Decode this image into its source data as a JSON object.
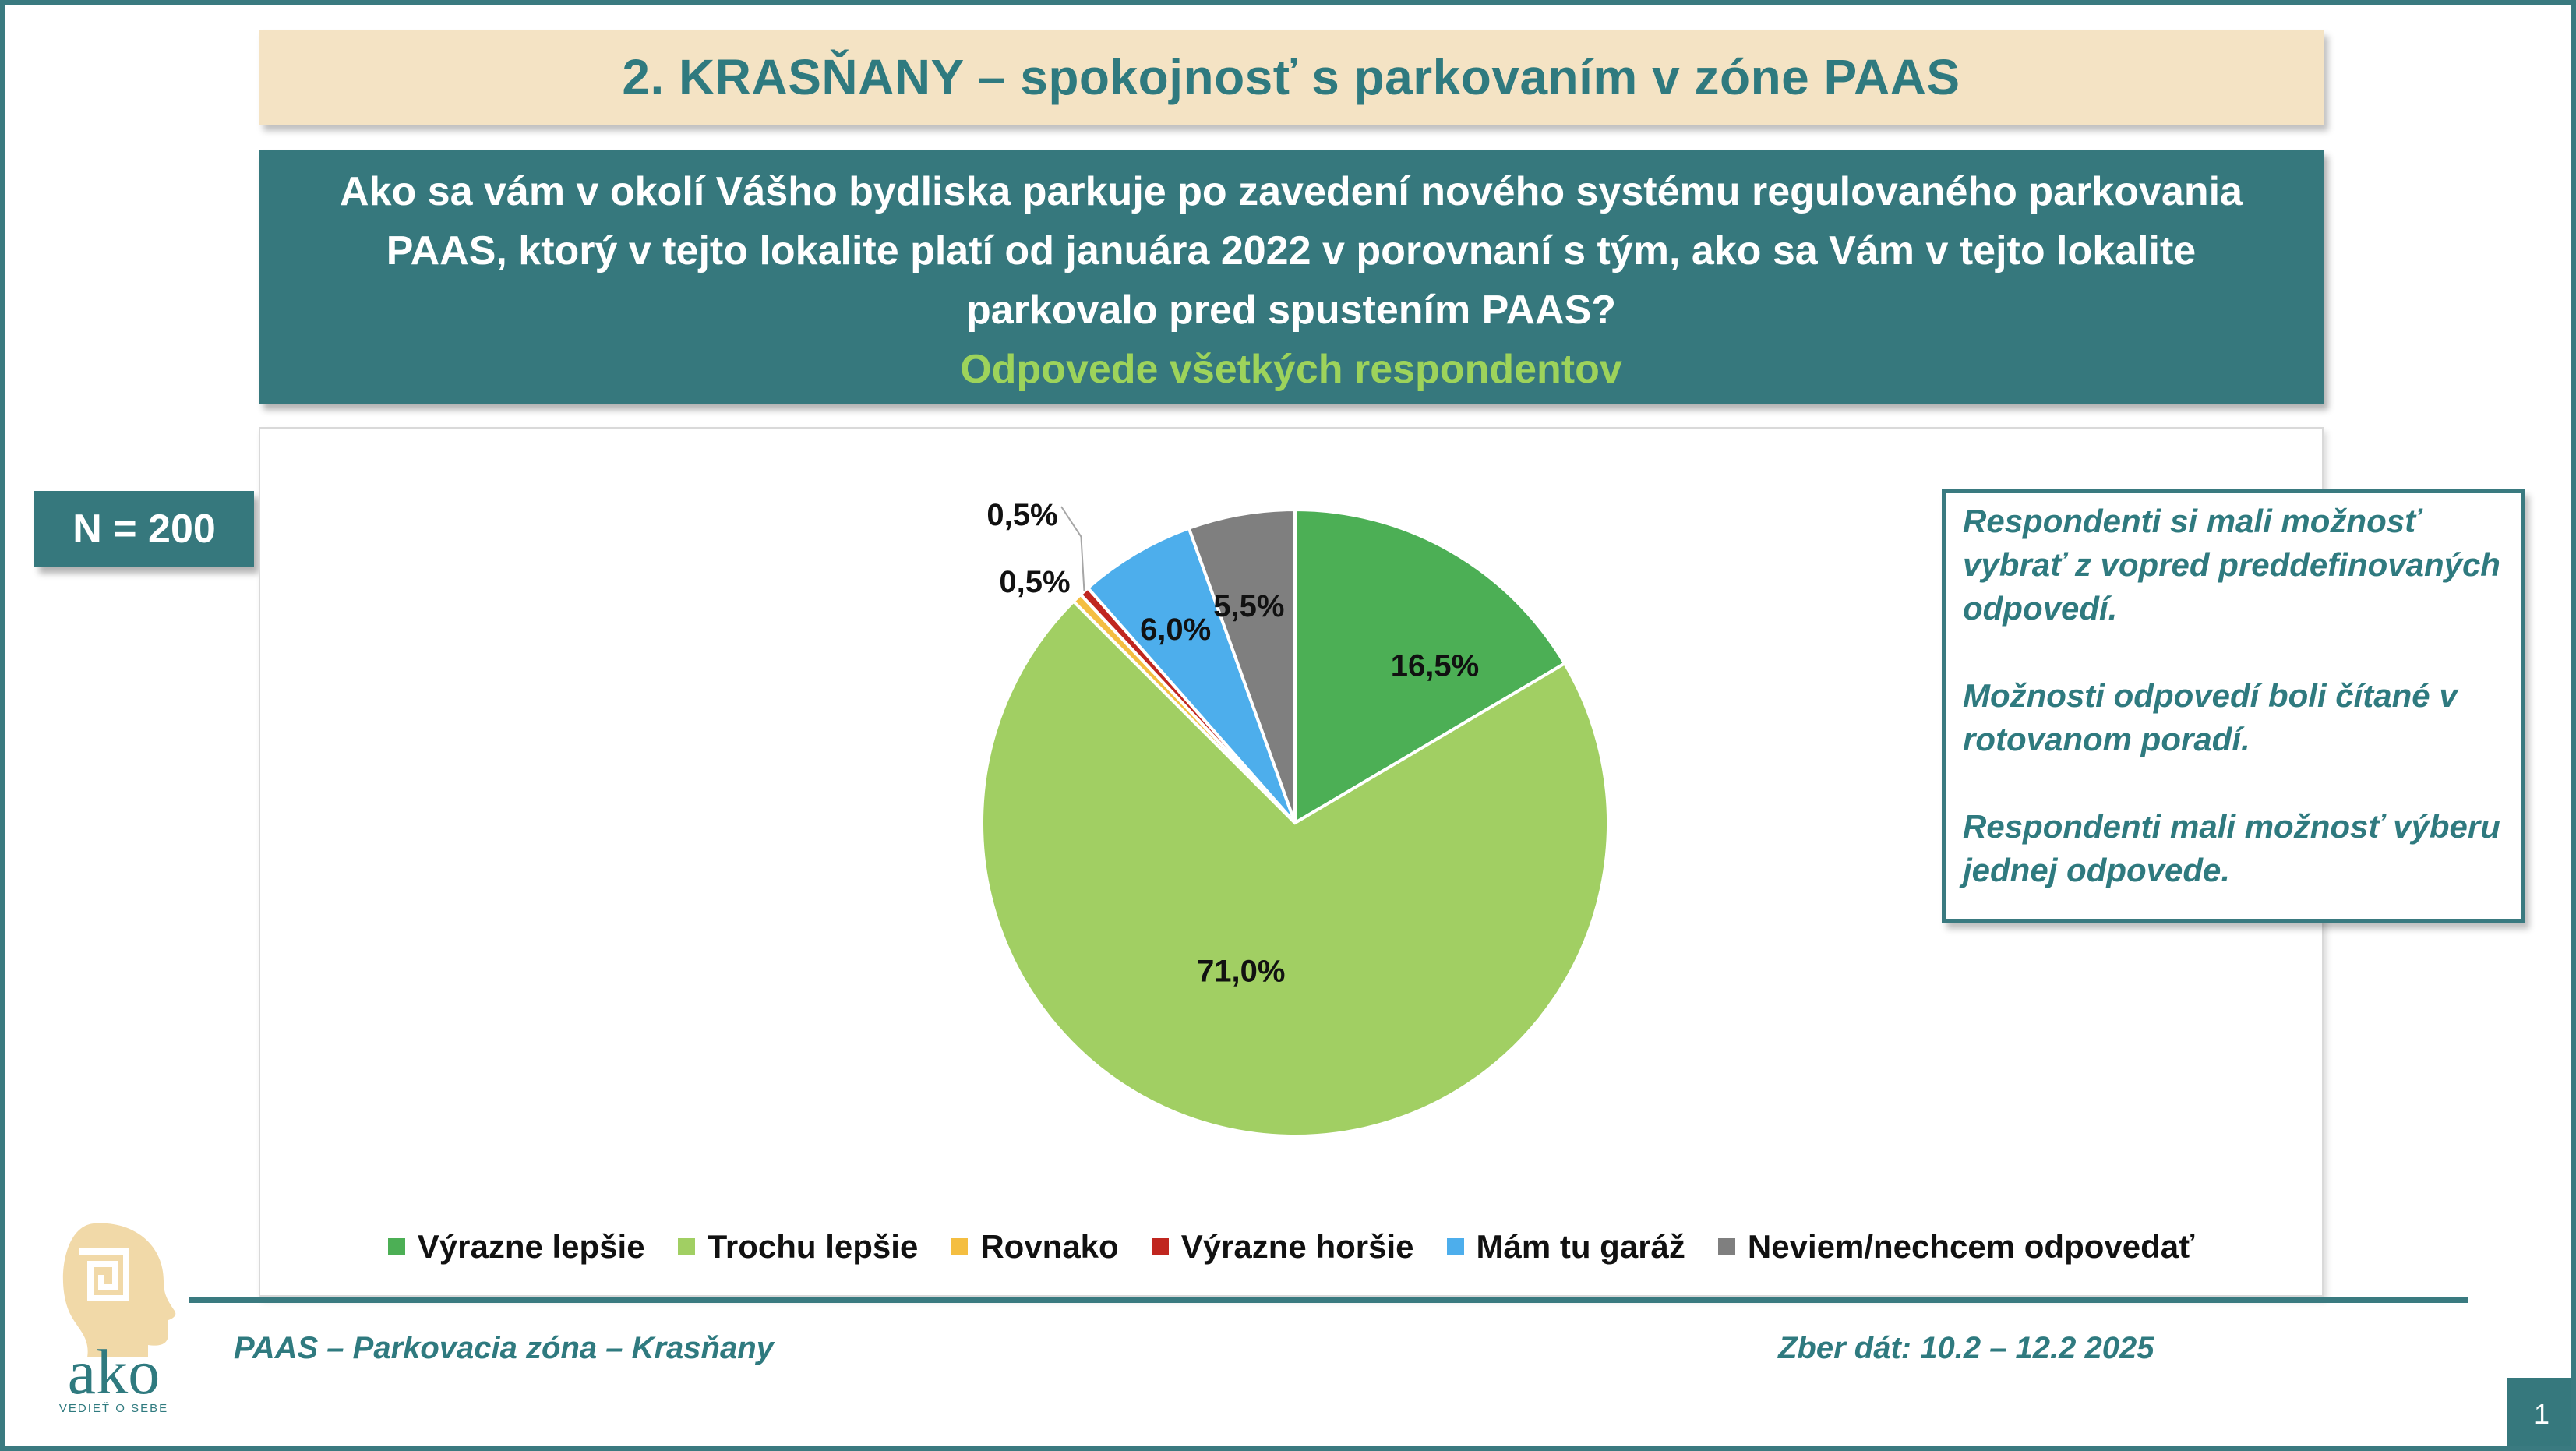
{
  "title": "2. KRASŇANY – spokojnosť s parkovaním v zóne PAAS",
  "question": {
    "lines": [
      "Ako sa vám v okolí Vášho bydliska parkuje po zavedení nového systému regulovaného parkovania",
      "PAAS, ktorý v tejto lokalite platí od januára 2022 v porovnaní s tým, ako sa Vám v tejto lokalite",
      "parkovalo pred spustením PAAS?"
    ],
    "subtitle": "Odpovede všetkých respondentov"
  },
  "sample": "N = 200",
  "note": {
    "paragraphs": [
      "Respondenti si mali možnosť vybrať z vopred preddefinovaných odpovedí.",
      "Možnosti odpovedí boli čítané v rotovanom poradí.",
      "Respondenti mali možnosť výberu jednej odpovede."
    ]
  },
  "chart_data": {
    "type": "pie",
    "title": "",
    "start_angle_deg": 0,
    "direction": "clockwise",
    "legend_position": "bottom",
    "slices": [
      {
        "label": "Výrazne lepšie",
        "value": 16.5,
        "display": "16,5%",
        "color": "#4caf55"
      },
      {
        "label": "Trochu lepšie",
        "value": 71.0,
        "display": "71,0%",
        "color": "#a1cf63"
      },
      {
        "label": "Rovnako",
        "value": 0.5,
        "display": "0,5%",
        "color": "#f4be41"
      },
      {
        "label": "Výrazne horšie",
        "value": 0.5,
        "display": "0,5%",
        "color": "#c0261f"
      },
      {
        "label": "Mám tu garáž",
        "value": 6.0,
        "display": "6,0%",
        "color": "#4daeec"
      },
      {
        "label": "Neviem/nechcem odpovedať",
        "value": 5.5,
        "display": "5,5%",
        "color": "#7f7f7f"
      }
    ]
  },
  "footer": {
    "left": "PAAS – Parkovacia zóna – Krasňany",
    "right": "Zber dát: 10.2 – 12.2 2025"
  },
  "logo": {
    "text": "ako",
    "tagline": "VEDIEŤ O SEBE",
    "color": "#f1d9a8"
  },
  "page_number": "1"
}
